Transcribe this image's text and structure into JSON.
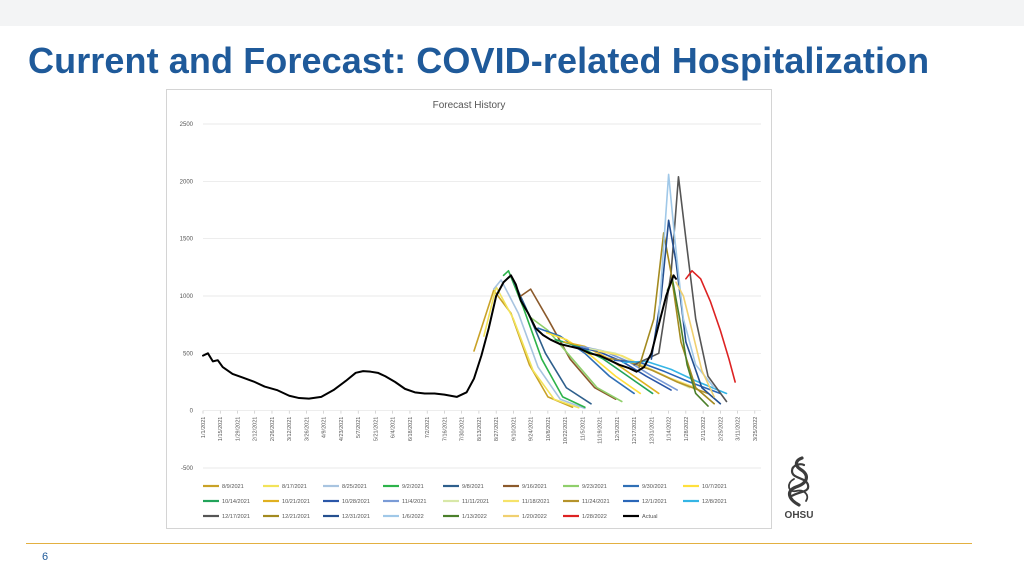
{
  "slide": {
    "title": "Current and Forecast: COVID-related Hospitalization",
    "page_number": "6",
    "logo_text": "OHSU"
  },
  "chart_data": {
    "type": "line",
    "title": "Forecast History",
    "ylim": [
      -500,
      2500
    ],
    "yticks": [
      2500,
      2000,
      1500,
      1000,
      500,
      0,
      -500
    ],
    "grid": true,
    "legend_position": "bottom",
    "x_start": "2021-01-01",
    "x_end": "2022-03-30",
    "xtick_labels": [
      "1/1/2021",
      "1/15/2021",
      "1/29/2021",
      "2/12/2021",
      "2/26/2021",
      "3/12/2021",
      "3/26/2021",
      "4/9/2021",
      "4/23/2021",
      "5/7/2021",
      "5/21/2021",
      "6/4/2021",
      "6/18/2021",
      "7/2/2021",
      "7/16/2021",
      "7/30/2021",
      "8/13/2021",
      "8/27/2021",
      "9/10/2021",
      "9/24/2021",
      "10/8/2021",
      "10/22/2021",
      "11/5/2021",
      "11/19/2021",
      "12/3/2021",
      "12/17/2021",
      "12/31/2021",
      "1/14/2022",
      "1/28/2022",
      "2/11/2022",
      "2/25/2022",
      "3/11/2022",
      "3/25/2022"
    ],
    "series": [
      {
        "name": "8/9/2021",
        "color": "#c9a227",
        "points": [
          [
            220,
            520
          ],
          [
            236,
            1050
          ],
          [
            250,
            850
          ],
          [
            265,
            400
          ],
          [
            280,
            120
          ],
          [
            300,
            30
          ]
        ]
      },
      {
        "name": "8/17/2021",
        "color": "#f2e35a",
        "points": [
          [
            228,
            650
          ],
          [
            238,
            1080
          ],
          [
            252,
            800
          ],
          [
            268,
            350
          ],
          [
            285,
            100
          ],
          [
            305,
            25
          ]
        ]
      },
      {
        "name": "8/25/2021",
        "color": "#a8c4e0",
        "points": [
          [
            236,
            1060
          ],
          [
            242,
            1140
          ],
          [
            256,
            850
          ],
          [
            272,
            380
          ],
          [
            290,
            100
          ],
          [
            310,
            20
          ]
        ]
      },
      {
        "name": "9/2/2021",
        "color": "#2db34a",
        "points": [
          [
            244,
            1180
          ],
          [
            248,
            1220
          ],
          [
            260,
            900
          ],
          [
            275,
            450
          ],
          [
            292,
            120
          ],
          [
            310,
            30
          ]
        ]
      },
      {
        "name": "9/8/2021",
        "color": "#2e5f8c",
        "points": [
          [
            250,
            1180
          ],
          [
            262,
            900
          ],
          [
            278,
            500
          ],
          [
            295,
            200
          ],
          [
            315,
            60
          ]
        ]
      },
      {
        "name": "9/16/2021",
        "color": "#8b5a2b",
        "points": [
          [
            258,
            1000
          ],
          [
            266,
            1060
          ],
          [
            280,
            800
          ],
          [
            298,
            450
          ],
          [
            318,
            200
          ],
          [
            335,
            100
          ]
        ]
      },
      {
        "name": "9/23/2021",
        "color": "#8fcf6b",
        "points": [
          [
            265,
            820
          ],
          [
            280,
            700
          ],
          [
            300,
            450
          ],
          [
            320,
            200
          ],
          [
            340,
            80
          ]
        ]
      },
      {
        "name": "9/30/2021",
        "color": "#2f6fb5",
        "points": [
          [
            272,
            720
          ],
          [
            290,
            650
          ],
          [
            310,
            500
          ],
          [
            330,
            300
          ],
          [
            350,
            150
          ]
        ]
      },
      {
        "name": "10/7/2021",
        "color": "#ffe03d",
        "points": [
          [
            279,
            680
          ],
          [
            295,
            620
          ],
          [
            315,
            480
          ],
          [
            335,
            300
          ],
          [
            355,
            150
          ]
        ]
      },
      {
        "name": "10/14/2021",
        "color": "#22a35a",
        "points": [
          [
            286,
            620
          ],
          [
            305,
            560
          ],
          [
            325,
            450
          ],
          [
            345,
            300
          ],
          [
            365,
            150
          ]
        ]
      },
      {
        "name": "10/21/2021",
        "color": "#e0b020",
        "points": [
          [
            293,
            600
          ],
          [
            310,
            560
          ],
          [
            330,
            450
          ],
          [
            350,
            300
          ],
          [
            370,
            150
          ]
        ]
      },
      {
        "name": "10/28/2021",
        "color": "#2a56a8",
        "points": [
          [
            300,
            560
          ],
          [
            320,
            520
          ],
          [
            340,
            430
          ],
          [
            360,
            300
          ],
          [
            380,
            180
          ]
        ]
      },
      {
        "name": "11/4/2021",
        "color": "#7a9bd6",
        "points": [
          [
            307,
            560
          ],
          [
            325,
            520
          ],
          [
            345,
            430
          ],
          [
            365,
            300
          ],
          [
            385,
            180
          ]
        ]
      },
      {
        "name": "11/11/2021",
        "color": "#d8e8a8",
        "points": [
          [
            314,
            540
          ],
          [
            335,
            500
          ],
          [
            355,
            400
          ],
          [
            375,
            300
          ],
          [
            395,
            200
          ]
        ]
      },
      {
        "name": "11/18/2021",
        "color": "#f6e36a",
        "points": [
          [
            321,
            520
          ],
          [
            340,
            480
          ],
          [
            360,
            380
          ],
          [
            380,
            280
          ],
          [
            400,
            200
          ]
        ]
      },
      {
        "name": "11/24/2021",
        "color": "#b5932b",
        "points": [
          [
            327,
            460
          ],
          [
            345,
            430
          ],
          [
            365,
            350
          ],
          [
            385,
            250
          ],
          [
            410,
            150
          ]
        ]
      },
      {
        "name": "12/1/2021",
        "color": "#2a66b8",
        "points": [
          [
            334,
            440
          ],
          [
            355,
            420
          ],
          [
            375,
            340
          ],
          [
            395,
            250
          ],
          [
            420,
            150
          ]
        ]
      },
      {
        "name": "12/8/2021",
        "color": "#35b5e5",
        "points": [
          [
            341,
            420
          ],
          [
            360,
            430
          ],
          [
            380,
            360
          ],
          [
            400,
            260
          ],
          [
            425,
            150
          ]
        ]
      },
      {
        "name": "12/17/2021",
        "color": "#555555",
        "points": [
          [
            350,
            400
          ],
          [
            370,
            500
          ],
          [
            380,
            1200
          ],
          [
            386,
            2040
          ],
          [
            392,
            1500
          ],
          [
            400,
            800
          ],
          [
            410,
            300
          ],
          [
            425,
            80
          ]
        ]
      },
      {
        "name": "12/21/2021",
        "color": "#a38a1f",
        "points": [
          [
            354,
            380
          ],
          [
            366,
            800
          ],
          [
            374,
            1550
          ],
          [
            380,
            1200
          ],
          [
            388,
            600
          ],
          [
            400,
            200
          ],
          [
            415,
            60
          ]
        ]
      },
      {
        "name": "12/31/2021",
        "color": "#244f8f",
        "points": [
          [
            364,
            450
          ],
          [
            372,
            1000
          ],
          [
            378,
            1660
          ],
          [
            384,
            1300
          ],
          [
            392,
            600
          ],
          [
            405,
            200
          ],
          [
            420,
            60
          ]
        ]
      },
      {
        "name": "1/6/2022",
        "color": "#a0c8e8",
        "points": [
          [
            370,
            800
          ],
          [
            375,
            1600
          ],
          [
            378,
            2060
          ],
          [
            383,
            1500
          ],
          [
            390,
            800
          ],
          [
            400,
            400
          ],
          [
            415,
            200
          ]
        ]
      },
      {
        "name": "1/13/2022",
        "color": "#4a7f2a",
        "points": [
          [
            377,
            1050
          ],
          [
            381,
            1150
          ],
          [
            387,
            800
          ],
          [
            393,
            400
          ],
          [
            400,
            150
          ],
          [
            410,
            40
          ]
        ]
      },
      {
        "name": "1/20/2022",
        "color": "#f0d070",
        "points": [
          [
            384,
            1120
          ],
          [
            390,
            1000
          ],
          [
            397,
            700
          ],
          [
            405,
            350
          ],
          [
            415,
            120
          ]
        ]
      },
      {
        "name": "1/28/2022",
        "color": "#dd2222",
        "points": [
          [
            392,
            1150
          ],
          [
            397,
            1220
          ],
          [
            404,
            1150
          ],
          [
            412,
            950
          ],
          [
            420,
            700
          ],
          [
            427,
            450
          ],
          [
            432,
            250
          ]
        ]
      },
      {
        "name": "Actual",
        "color": "#000000",
        "width": 2,
        "points": [
          [
            0,
            480
          ],
          [
            4,
            500
          ],
          [
            8,
            430
          ],
          [
            12,
            440
          ],
          [
            16,
            380
          ],
          [
            24,
            320
          ],
          [
            32,
            290
          ],
          [
            42,
            250
          ],
          [
            50,
            210
          ],
          [
            60,
            180
          ],
          [
            70,
            130
          ],
          [
            78,
            110
          ],
          [
            86,
            105
          ],
          [
            96,
            120
          ],
          [
            106,
            180
          ],
          [
            116,
            260
          ],
          [
            124,
            330
          ],
          [
            130,
            345
          ],
          [
            136,
            340
          ],
          [
            142,
            330
          ],
          [
            148,
            300
          ],
          [
            156,
            250
          ],
          [
            164,
            190
          ],
          [
            172,
            160
          ],
          [
            180,
            150
          ],
          [
            188,
            150
          ],
          [
            196,
            140
          ],
          [
            206,
            120
          ],
          [
            214,
            160
          ],
          [
            220,
            280
          ],
          [
            226,
            480
          ],
          [
            232,
            720
          ],
          [
            238,
            1000
          ],
          [
            244,
            1120
          ],
          [
            250,
            1180
          ],
          [
            254,
            1100
          ],
          [
            258,
            960
          ],
          [
            264,
            850
          ],
          [
            270,
            720
          ],
          [
            276,
            660
          ],
          [
            282,
            620
          ],
          [
            290,
            580
          ],
          [
            298,
            560
          ],
          [
            306,
            540
          ],
          [
            314,
            500
          ],
          [
            322,
            480
          ],
          [
            330,
            440
          ],
          [
            338,
            400
          ],
          [
            346,
            370
          ],
          [
            352,
            340
          ],
          [
            358,
            380
          ],
          [
            364,
            500
          ],
          [
            370,
            750
          ],
          [
            376,
            1000
          ],
          [
            382,
            1180
          ],
          [
            384,
            1150
          ]
        ]
      }
    ]
  }
}
